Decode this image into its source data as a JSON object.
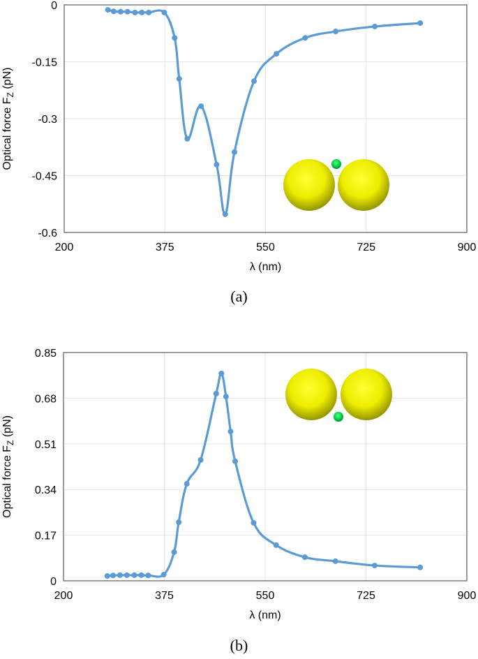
{
  "chart_data": [
    {
      "type": "line",
      "panel_label": "(a)",
      "title": "",
      "xlabel": "λ (nm)",
      "ylabel": "Optical force F_Z (pN)",
      "ylabel_main": "Optical force F",
      "ylabel_sub": "Z",
      "ylabel_unit": " (pN)",
      "xlim": [
        200,
        900
      ],
      "ylim": [
        -0.6,
        0
      ],
      "xticks": [
        200,
        375,
        550,
        725,
        900
      ],
      "yticks": [
        0,
        -0.15,
        -0.3,
        -0.45,
        -0.6
      ],
      "xtick_labels": [
        "200",
        "375",
        "550",
        "725",
        "900"
      ],
      "ytick_labels": [
        "0",
        "-0.15",
        "-0.3",
        "-0.45",
        "-0.6"
      ],
      "grid": true,
      "legend": "none",
      "series_color": "#5B9BD5",
      "inset": "two yellow spheres with small green sphere above the gap",
      "series": [
        {
          "name": "Fz",
          "x": [
            276,
            286,
            298,
            310,
            323,
            335,
            347,
            374,
            392,
            400,
            414,
            438,
            465,
            480,
            496,
            530,
            569,
            619,
            672,
            740,
            819
          ],
          "y": [
            -0.013,
            -0.017,
            -0.018,
            -0.018,
            -0.02,
            -0.02,
            -0.02,
            -0.02,
            -0.087,
            -0.195,
            -0.353,
            -0.267,
            -0.421,
            -0.552,
            -0.388,
            -0.201,
            -0.129,
            -0.087,
            -0.07,
            -0.057,
            -0.048
          ]
        }
      ]
    },
    {
      "type": "line",
      "panel_label": "(b)",
      "title": "",
      "xlabel": "λ (nm)",
      "ylabel": "Optical force F_Z (pN)",
      "ylabel_main": "Optical force F",
      "ylabel_sub": "Z",
      "ylabel_unit": " (pN)",
      "xlim": [
        200,
        900
      ],
      "ylim": [
        0,
        0.85
      ],
      "xticks": [
        200,
        375,
        550,
        725,
        900
      ],
      "yticks": [
        0,
        0.17,
        0.34,
        0.51,
        0.68,
        0.85
      ],
      "xtick_labels": [
        "200",
        "375",
        "550",
        "725",
        "900"
      ],
      "ytick_labels": [
        "0",
        "0.17",
        "0.34",
        "0.51",
        "0.68",
        "0.85"
      ],
      "grid": true,
      "legend": "none",
      "series_color": "#5B9BD5",
      "inset": "two yellow spheres with small green sphere below the gap",
      "series": [
        {
          "name": "Fz",
          "x": [
            276,
            286,
            298,
            310,
            323,
            335,
            347,
            374,
            392,
            400,
            414,
            438,
            465,
            474,
            482,
            490,
            498,
            530,
            569,
            619,
            672,
            740,
            819
          ],
          "y": [
            0.018,
            0.02,
            0.021,
            0.021,
            0.021,
            0.021,
            0.02,
            0.023,
            0.107,
            0.218,
            0.361,
            0.45,
            0.697,
            0.772,
            0.686,
            0.556,
            0.445,
            0.216,
            0.133,
            0.088,
            0.073,
            0.057,
            0.05
          ]
        }
      ]
    }
  ],
  "captions": {
    "a": "(a)",
    "b": "(b)"
  }
}
